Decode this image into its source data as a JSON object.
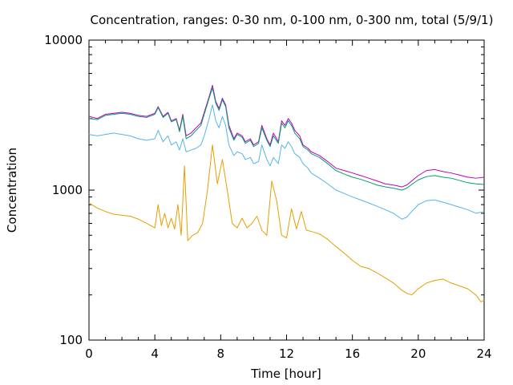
{
  "chart_data": {
    "type": "line",
    "title": "Concentration, ranges: 0-30 nm, 0-100 nm, 0-300 nm, total (5/9/1)",
    "xlabel": "Time [hour]",
    "ylabel": "Concentration",
    "xlim": [
      0,
      24
    ],
    "ylim": [
      100,
      10000
    ],
    "yscale": "log",
    "grid": false,
    "legend": "none",
    "xticks": [
      "0",
      "4",
      "8",
      "12",
      "16",
      "20",
      "24"
    ],
    "yticks": [
      "100",
      "1000",
      "10000"
    ],
    "series": [
      {
        "color": "#c000c0",
        "x": [
          0,
          0.5,
          1,
          1.5,
          2,
          2.5,
          3,
          3.5,
          4,
          4.2,
          4.5,
          4.8,
          5,
          5.3,
          5.5,
          5.7,
          5.9,
          6.2,
          6.5,
          6.8,
          7,
          7.3,
          7.5,
          7.7,
          7.9,
          8.1,
          8.3,
          8.5,
          8.8,
          9,
          9.3,
          9.5,
          9.8,
          10,
          10.3,
          10.5,
          10.8,
          11,
          11.2,
          11.5,
          11.7,
          11.9,
          12.1,
          12.3,
          12.5,
          12.8,
          13,
          13.3,
          13.5,
          14,
          14.5,
          15,
          15.5,
          16,
          16.5,
          17,
          17.5,
          18,
          18.5,
          19,
          19.3,
          19.6,
          20,
          20.5,
          21,
          21.5,
          22,
          22.5,
          23,
          23.5,
          24
        ],
        "y": [
          3100,
          3000,
          3200,
          3250,
          3300,
          3250,
          3150,
          3100,
          3250,
          3600,
          3100,
          3300,
          2900,
          3000,
          2500,
          3200,
          2300,
          2400,
          2600,
          2800,
          3300,
          4200,
          5000,
          3900,
          3500,
          4100,
          3700,
          2700,
          2200,
          2400,
          2300,
          2100,
          2200,
          2000,
          2100,
          2700,
          2200,
          2000,
          2400,
          2100,
          2900,
          2700,
          3000,
          2800,
          2500,
          2300,
          2000,
          1900,
          1800,
          1700,
          1550,
          1400,
          1350,
          1300,
          1250,
          1200,
          1150,
          1100,
          1080,
          1050,
          1080,
          1150,
          1250,
          1350,
          1370,
          1330,
          1300,
          1260,
          1220,
          1200,
          1220
        ]
      },
      {
        "color": "#009e73",
        "x": [
          0,
          0.5,
          1,
          1.5,
          2,
          2.5,
          3,
          3.5,
          4,
          4.2,
          4.5,
          4.8,
          5,
          5.3,
          5.5,
          5.7,
          5.9,
          6.2,
          6.5,
          6.8,
          7,
          7.3,
          7.5,
          7.7,
          7.9,
          8.1,
          8.3,
          8.5,
          8.8,
          9,
          9.3,
          9.5,
          9.8,
          10,
          10.3,
          10.5,
          10.8,
          11,
          11.2,
          11.5,
          11.7,
          11.9,
          12.1,
          12.3,
          12.5,
          12.8,
          13,
          13.3,
          13.5,
          14,
          14.5,
          15,
          15.5,
          16,
          16.5,
          17,
          17.5,
          18,
          18.5,
          19,
          19.3,
          19.6,
          20,
          20.5,
          21,
          21.5,
          22,
          22.5,
          23,
          23.5,
          24
        ],
        "y": [
          3000,
          2950,
          3150,
          3200,
          3250,
          3200,
          3100,
          3050,
          3200,
          3550,
          3050,
          3250,
          2850,
          2950,
          2450,
          3100,
          2200,
          2300,
          2500,
          2700,
          3200,
          4100,
          4800,
          3800,
          3400,
          4000,
          3600,
          2600,
          2150,
          2350,
          2250,
          2050,
          2150,
          1950,
          2050,
          2600,
          2150,
          1950,
          2300,
          2050,
          2800,
          2600,
          2900,
          2700,
          2400,
          2200,
          1950,
          1850,
          1750,
          1650,
          1500,
          1350,
          1280,
          1220,
          1180,
          1130,
          1080,
          1050,
          1030,
          1000,
          1030,
          1090,
          1170,
          1230,
          1250,
          1220,
          1200,
          1160,
          1120,
          1100,
          1090
        ]
      },
      {
        "color": "#56b4e9",
        "x": [
          0,
          0.5,
          1,
          1.5,
          2,
          2.5,
          3,
          3.5,
          4,
          4.2,
          4.5,
          4.8,
          5,
          5.3,
          5.5,
          5.7,
          5.9,
          6.2,
          6.5,
          6.8,
          7,
          7.3,
          7.5,
          7.7,
          7.9,
          8.1,
          8.3,
          8.5,
          8.8,
          9,
          9.3,
          9.5,
          9.8,
          10,
          10.3,
          10.5,
          10.8,
          11,
          11.2,
          11.5,
          11.7,
          11.9,
          12.1,
          12.3,
          12.5,
          12.8,
          13,
          13.3,
          13.5,
          14,
          14.5,
          15,
          15.5,
          16,
          16.5,
          17,
          17.5,
          18,
          18.5,
          19,
          19.3,
          19.6,
          20,
          20.5,
          21,
          21.5,
          22,
          22.5,
          23,
          23.5,
          24
        ],
        "y": [
          2350,
          2300,
          2350,
          2400,
          2350,
          2300,
          2200,
          2150,
          2200,
          2500,
          2100,
          2300,
          2000,
          2100,
          1850,
          2200,
          1800,
          1850,
          1900,
          2000,
          2300,
          3000,
          3700,
          2900,
          2600,
          3100,
          2700,
          2000,
          1700,
          1800,
          1750,
          1600,
          1650,
          1500,
          1550,
          2000,
          1600,
          1450,
          1650,
          1500,
          2000,
          1900,
          2100,
          1950,
          1750,
          1650,
          1500,
          1400,
          1300,
          1200,
          1100,
          1000,
          950,
          900,
          860,
          820,
          780,
          740,
          700,
          640,
          660,
          720,
          800,
          850,
          860,
          830,
          800,
          770,
          740,
          700,
          720
        ]
      },
      {
        "color": "#e69f00",
        "x": [
          0,
          0.5,
          1,
          1.5,
          2,
          2.5,
          3,
          3.5,
          4,
          4.2,
          4.4,
          4.6,
          4.8,
          5.0,
          5.2,
          5.4,
          5.6,
          5.8,
          6.0,
          6.3,
          6.6,
          6.9,
          7.2,
          7.5,
          7.8,
          8.1,
          8.4,
          8.7,
          9.0,
          9.3,
          9.6,
          9.9,
          10.2,
          10.5,
          10.8,
          11.1,
          11.4,
          11.7,
          12.0,
          12.3,
          12.6,
          12.9,
          13.2,
          13.5,
          14,
          14.5,
          15,
          15.5,
          16,
          16.5,
          17,
          17.5,
          18,
          18.5,
          19,
          19.3,
          19.6,
          20,
          20.5,
          21,
          21.5,
          22,
          22.5,
          23,
          23.5,
          23.8,
          24
        ],
        "y": [
          820,
          760,
          720,
          690,
          680,
          670,
          640,
          600,
          560,
          800,
          580,
          700,
          560,
          650,
          550,
          800,
          500,
          1450,
          460,
          500,
          520,
          600,
          1000,
          2000,
          1100,
          1600,
          1000,
          600,
          560,
          650,
          560,
          600,
          670,
          540,
          500,
          1150,
          850,
          500,
          480,
          750,
          550,
          720,
          540,
          530,
          510,
          470,
          420,
          380,
          340,
          310,
          300,
          280,
          260,
          240,
          215,
          205,
          200,
          220,
          240,
          250,
          255,
          240,
          230,
          220,
          200,
          180,
          185
        ]
      }
    ]
  }
}
